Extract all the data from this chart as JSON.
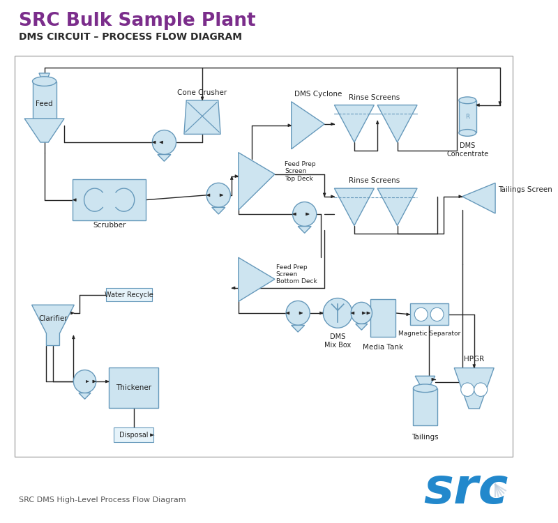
{
  "title": "SRC Bulk Sample Plant",
  "subtitle": "DMS CIRCUIT – PROCESS FLOW DIAGRAM",
  "footer": "SRC DMS High-Level Process Flow Diagram",
  "title_color": "#7b2d8b",
  "subtitle_color": "#2a2a2a",
  "bg_color": "#ffffff",
  "box_fill": "#cde4f0",
  "box_edge": "#6699bb",
  "line_color": "#222222",
  "src_color": "#2288cc",
  "border_color": "#aaaaaa"
}
